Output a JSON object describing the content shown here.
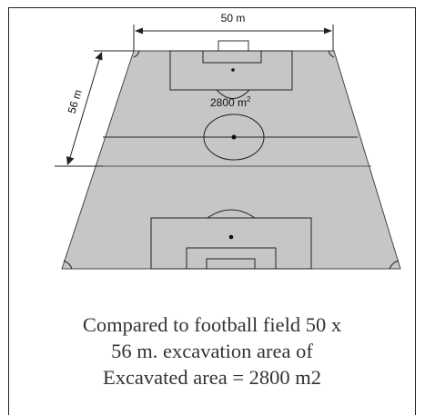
{
  "diagram": {
    "width_label": "50 m",
    "length_label": "56 m",
    "area_label": "2800 m",
    "area_unit_sup": "2"
  },
  "caption": {
    "line1": "Compared to football field 50 x",
    "line2": "56 m. excavation area of",
    "line3": "Excavated area = 2800 m2"
  },
  "colors": {
    "field_fill": "#c6c6c6",
    "field_lines": "#222222",
    "frame": "#222222",
    "text": "#333333"
  }
}
